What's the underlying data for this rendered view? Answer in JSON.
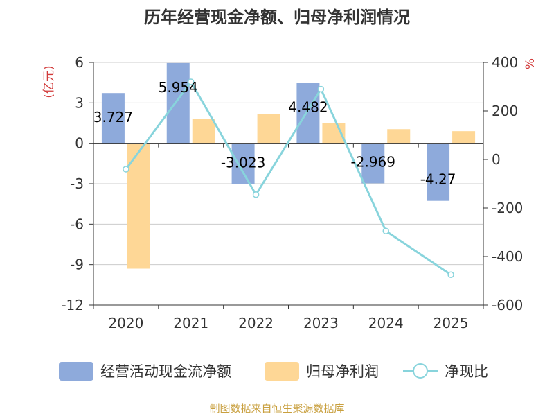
{
  "chart_data": {
    "type": "bar+line",
    "title": "历年经营现金净额、归母净利润情况",
    "categories": [
      "2020",
      "2021",
      "2022",
      "2023",
      "2024",
      "2025"
    ],
    "series": [
      {
        "name": "经营活动现金流净额",
        "type": "bar",
        "axis": "left",
        "color": "#8eaadb",
        "values": [
          3.727,
          5.954,
          -3.023,
          4.482,
          -2.969,
          -4.27
        ],
        "labels": [
          "3.727",
          "5.954",
          "-3.023",
          "4.482",
          "-2.969",
          "-4.27"
        ]
      },
      {
        "name": "归母净利润",
        "type": "bar",
        "axis": "left",
        "color": "#fed796",
        "values": [
          -9.3,
          1.8,
          2.15,
          1.5,
          1.05,
          0.9
        ]
      },
      {
        "name": "净现比",
        "type": "line",
        "axis": "right",
        "color": "#88d4dc",
        "values": [
          -40,
          320,
          -145,
          290,
          -295,
          -475
        ]
      }
    ],
    "y_left": {
      "unit": "(亿元)",
      "min": -12,
      "max": 6,
      "ticks": [
        6,
        3,
        0,
        -3,
        -6,
        -9,
        -12
      ]
    },
    "y_right": {
      "unit": "%",
      "min": -600,
      "max": 400,
      "ticks": [
        400,
        200,
        0,
        -200,
        -400,
        -600
      ]
    },
    "legend_position": "bottom",
    "source": "制图数据来自恒生聚源数据库"
  }
}
